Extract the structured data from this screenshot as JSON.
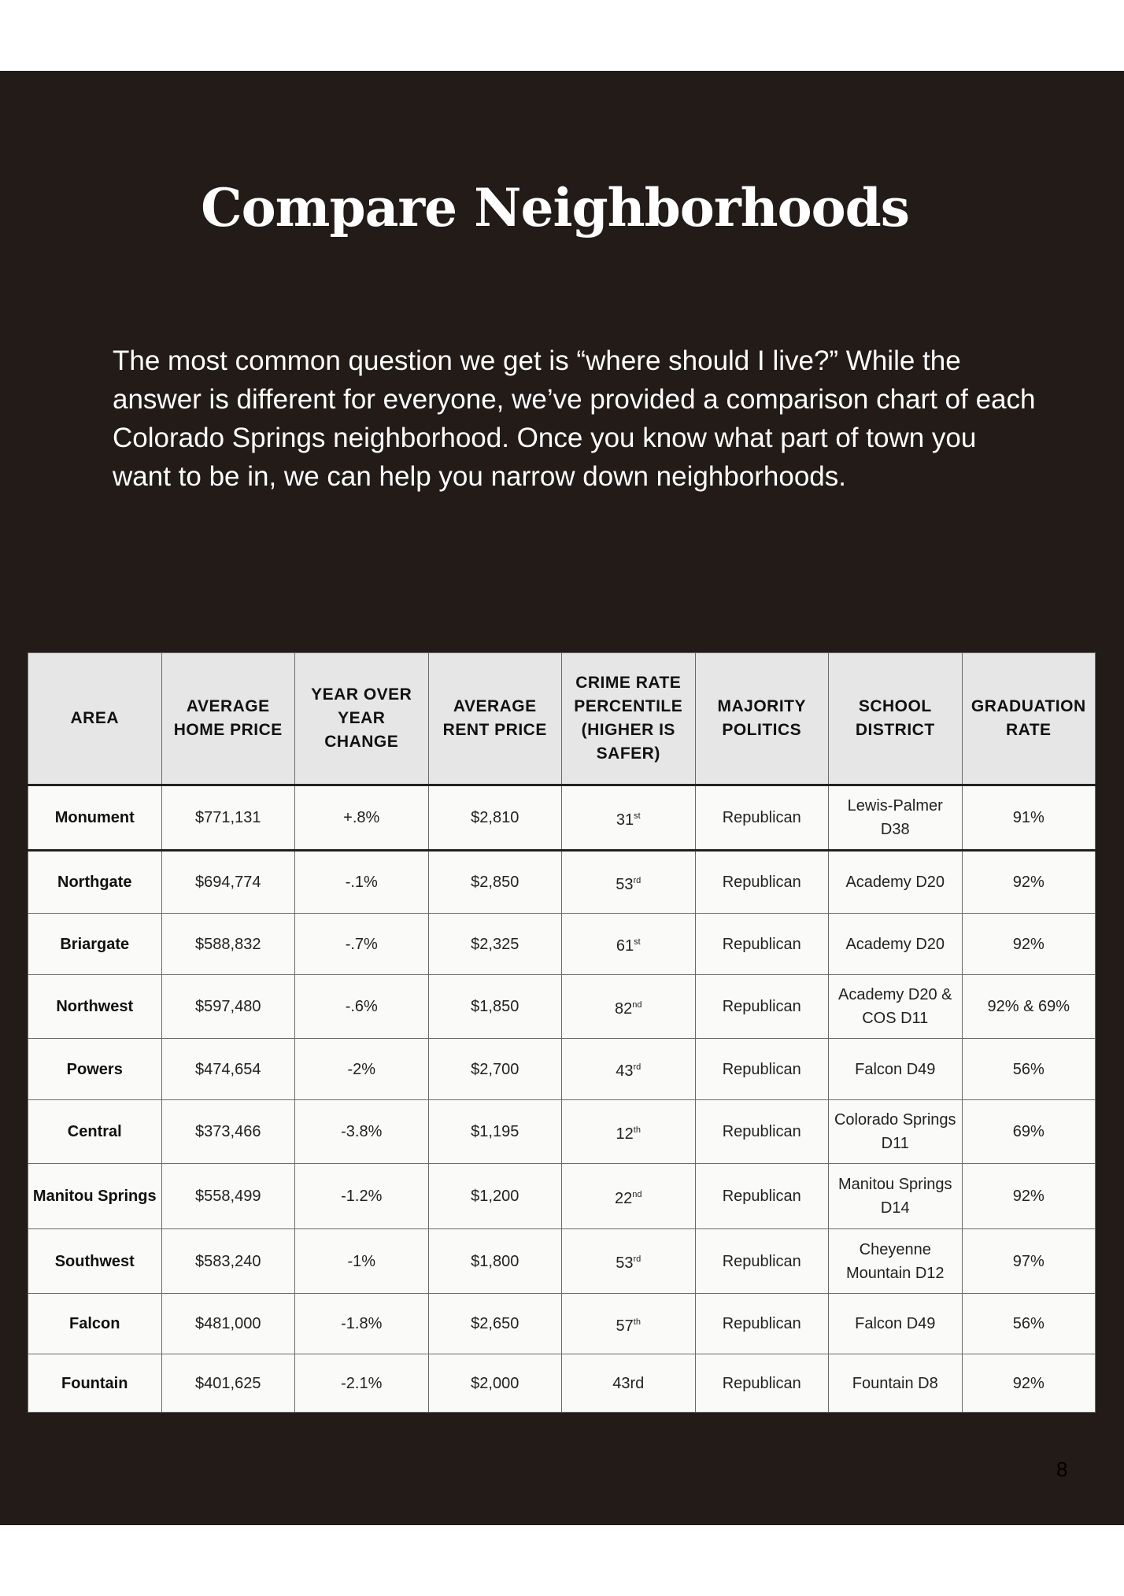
{
  "page": {
    "title": "Compare Neighborhoods",
    "intro": "The most common question we get is “where should I live?” While the answer is different for everyone, we’ve provided a comparison chart of each Colorado Springs neighborhood. Once you know what part of town you want to be in, we can help you narrow down neighborhoods.",
    "page_number": "8",
    "colors": {
      "background": "#231b17",
      "header_bg": "#e6e6e6",
      "cell_bg": "#fafaf8"
    }
  },
  "table": {
    "headers": [
      "AREA",
      "AVERAGE HOME PRICE",
      "YEAR OVER YEAR CHANGE",
      "AVERAGE RENT PRICE",
      "CRIME RATE PERCENTILE (HIGHER IS SAFER)",
      "MAJORITY POLITICS",
      "SCHOOL DISTRICT",
      "GRADUATION RATE"
    ],
    "rows": [
      {
        "area": "Monument",
        "home_price": "$771,131",
        "yoy": "+.8%",
        "rent": "$2,810",
        "crime": "31",
        "crime_sup": "st",
        "politics": "Republican",
        "district": "Lewis-Palmer D38",
        "grad": "91%"
      },
      {
        "area": "Northgate",
        "home_price": "$694,774",
        "yoy": "-.1%",
        "rent": "$2,850",
        "crime": "53",
        "crime_sup": "rd",
        "politics": "Republican",
        "district": "Academy D20",
        "grad": "92%"
      },
      {
        "area": "Briargate",
        "home_price": "$588,832",
        "yoy": "-.7%",
        "rent": "$2,325",
        "crime": "61",
        "crime_sup": "st",
        "politics": "Republican",
        "district": "Academy D20",
        "grad": "92%"
      },
      {
        "area": "Northwest",
        "home_price": "$597,480",
        "yoy": "-.6%",
        "rent": "$1,850",
        "crime": "82",
        "crime_sup": "nd",
        "politics": "Republican",
        "district": "Academy D20 & COS D11",
        "grad": "92% & 69%"
      },
      {
        "area": "Powers",
        "home_price": "$474,654",
        "yoy": "-2%",
        "rent": "$2,700",
        "crime": "43",
        "crime_sup": "rd",
        "politics": "Republican",
        "district": "Falcon D49",
        "grad": "56%"
      },
      {
        "area": "Central",
        "home_price": "$373,466",
        "yoy": "-3.8%",
        "rent": "$1,195",
        "crime": "12",
        "crime_sup": "th",
        "politics": "Republican",
        "district": "Colorado Springs D11",
        "grad": "69%"
      },
      {
        "area": "Manitou Springs",
        "home_price": "$558,499",
        "yoy": "-1.2%",
        "rent": "$1,200",
        "crime": "22",
        "crime_sup": "nd",
        "politics": "Republican",
        "district": "Manitou Springs D14",
        "grad": "92%"
      },
      {
        "area": "Southwest",
        "home_price": "$583,240",
        "yoy": "-1%",
        "rent": "$1,800",
        "crime": "53",
        "crime_sup": "rd",
        "politics": "Republican",
        "district": "Cheyenne Mountain D12",
        "grad": "97%"
      },
      {
        "area": "Falcon",
        "home_price": "$481,000",
        "yoy": "-1.8%",
        "rent": "$2,650",
        "crime": "57",
        "crime_sup": "th",
        "politics": "Republican",
        "district": "Falcon D49",
        "grad": "56%"
      },
      {
        "area": "Fountain",
        "home_price": "$401,625",
        "yoy": "-2.1%",
        "rent": "$2,000",
        "crime": "43rd",
        "crime_sup": "",
        "politics": "Republican",
        "district": "Fountain D8",
        "grad": "92%"
      }
    ]
  }
}
